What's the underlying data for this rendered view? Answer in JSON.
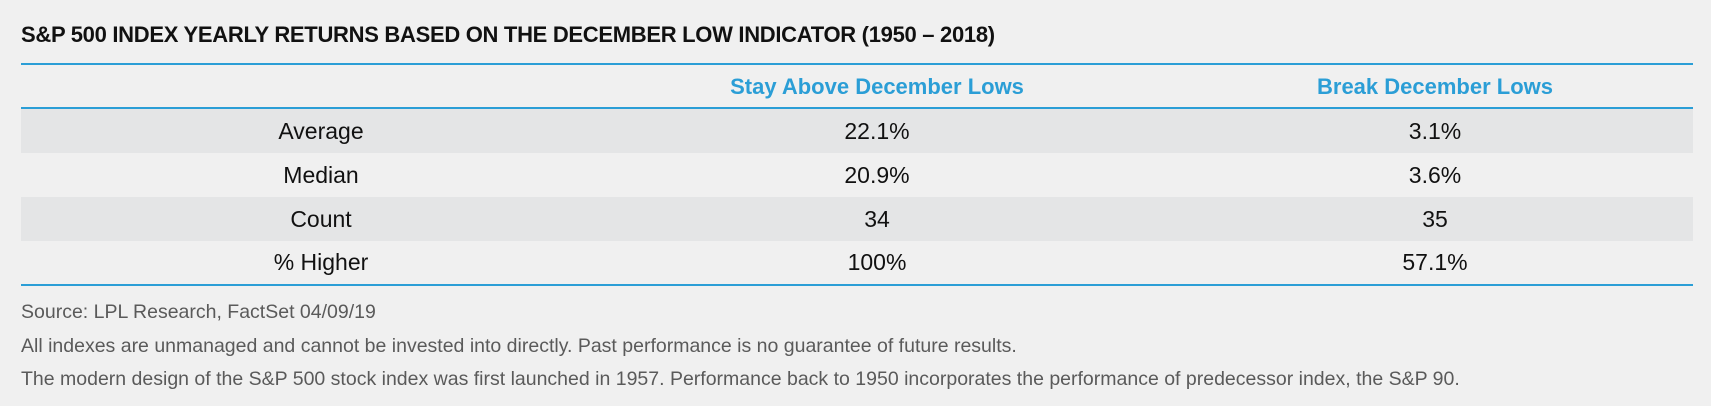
{
  "title": "S&P 500 INDEX YEARLY RETURNS BASED ON THE DECEMBER LOW INDICATOR (1950 – 2018)",
  "colors": {
    "accent": "#2b9ed6",
    "shaded_row": "#e4e5e6",
    "background": "#f0f0f0"
  },
  "chart_data": {
    "type": "table",
    "title": "S&P 500 INDEX YEARLY RETURNS BASED ON THE DECEMBER LOW INDICATOR (1950 – 2018)",
    "columns": [
      "",
      "Stay Above December Lows",
      "Break December Lows"
    ],
    "rows": [
      {
        "label": "Average",
        "stay_above": "22.1%",
        "break": "3.1%"
      },
      {
        "label": "Median",
        "stay_above": "20.9%",
        "break": "3.6%"
      },
      {
        "label": "Count",
        "stay_above": "34",
        "break": "35"
      },
      {
        "label": "% Higher",
        "stay_above": "100%",
        "break": "57.1%"
      }
    ]
  },
  "footnotes": [
    "Source: LPL Research, FactSet 04/09/19",
    "All indexes are unmanaged and cannot be invested into directly. Past performance is no guarantee of future results.",
    "The modern design of the S&P 500 stock index was first launched in 1957. Performance back to 1950 incorporates the performance of predecessor index, the S&P 90."
  ]
}
